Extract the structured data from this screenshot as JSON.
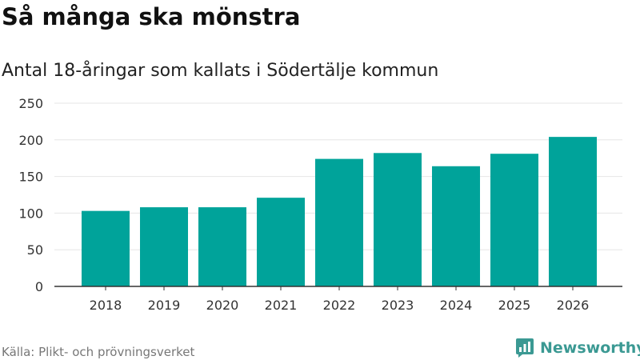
{
  "header": {
    "title": "Så många ska mönstra",
    "subtitle": "Antal 18-åringar som kallats i Södertälje kommun"
  },
  "footer": {
    "source": "Källa: Plikt- och prövningsverket",
    "brand": "Newsworthy",
    "brand_icon": "bar-chart-speech-bubble-icon"
  },
  "colors": {
    "bar": "#00a39a",
    "grid": "#e6e6e6",
    "axis": "#333333",
    "brand": "#3b9993"
  },
  "chart_data": {
    "type": "bar",
    "title": "Så många ska mönstra",
    "subtitle": "Antal 18-åringar som kallats i Södertälje kommun",
    "xlabel": "",
    "ylabel": "",
    "categories": [
      "2018",
      "2019",
      "2020",
      "2021",
      "2022",
      "2023",
      "2024",
      "2025",
      "2026"
    ],
    "values": [
      103,
      108,
      108,
      121,
      174,
      182,
      164,
      181,
      204
    ],
    "ylim": [
      0,
      250
    ],
    "yticks": [
      0,
      50,
      100,
      150,
      200,
      250
    ],
    "grid": true,
    "legend": "none"
  }
}
